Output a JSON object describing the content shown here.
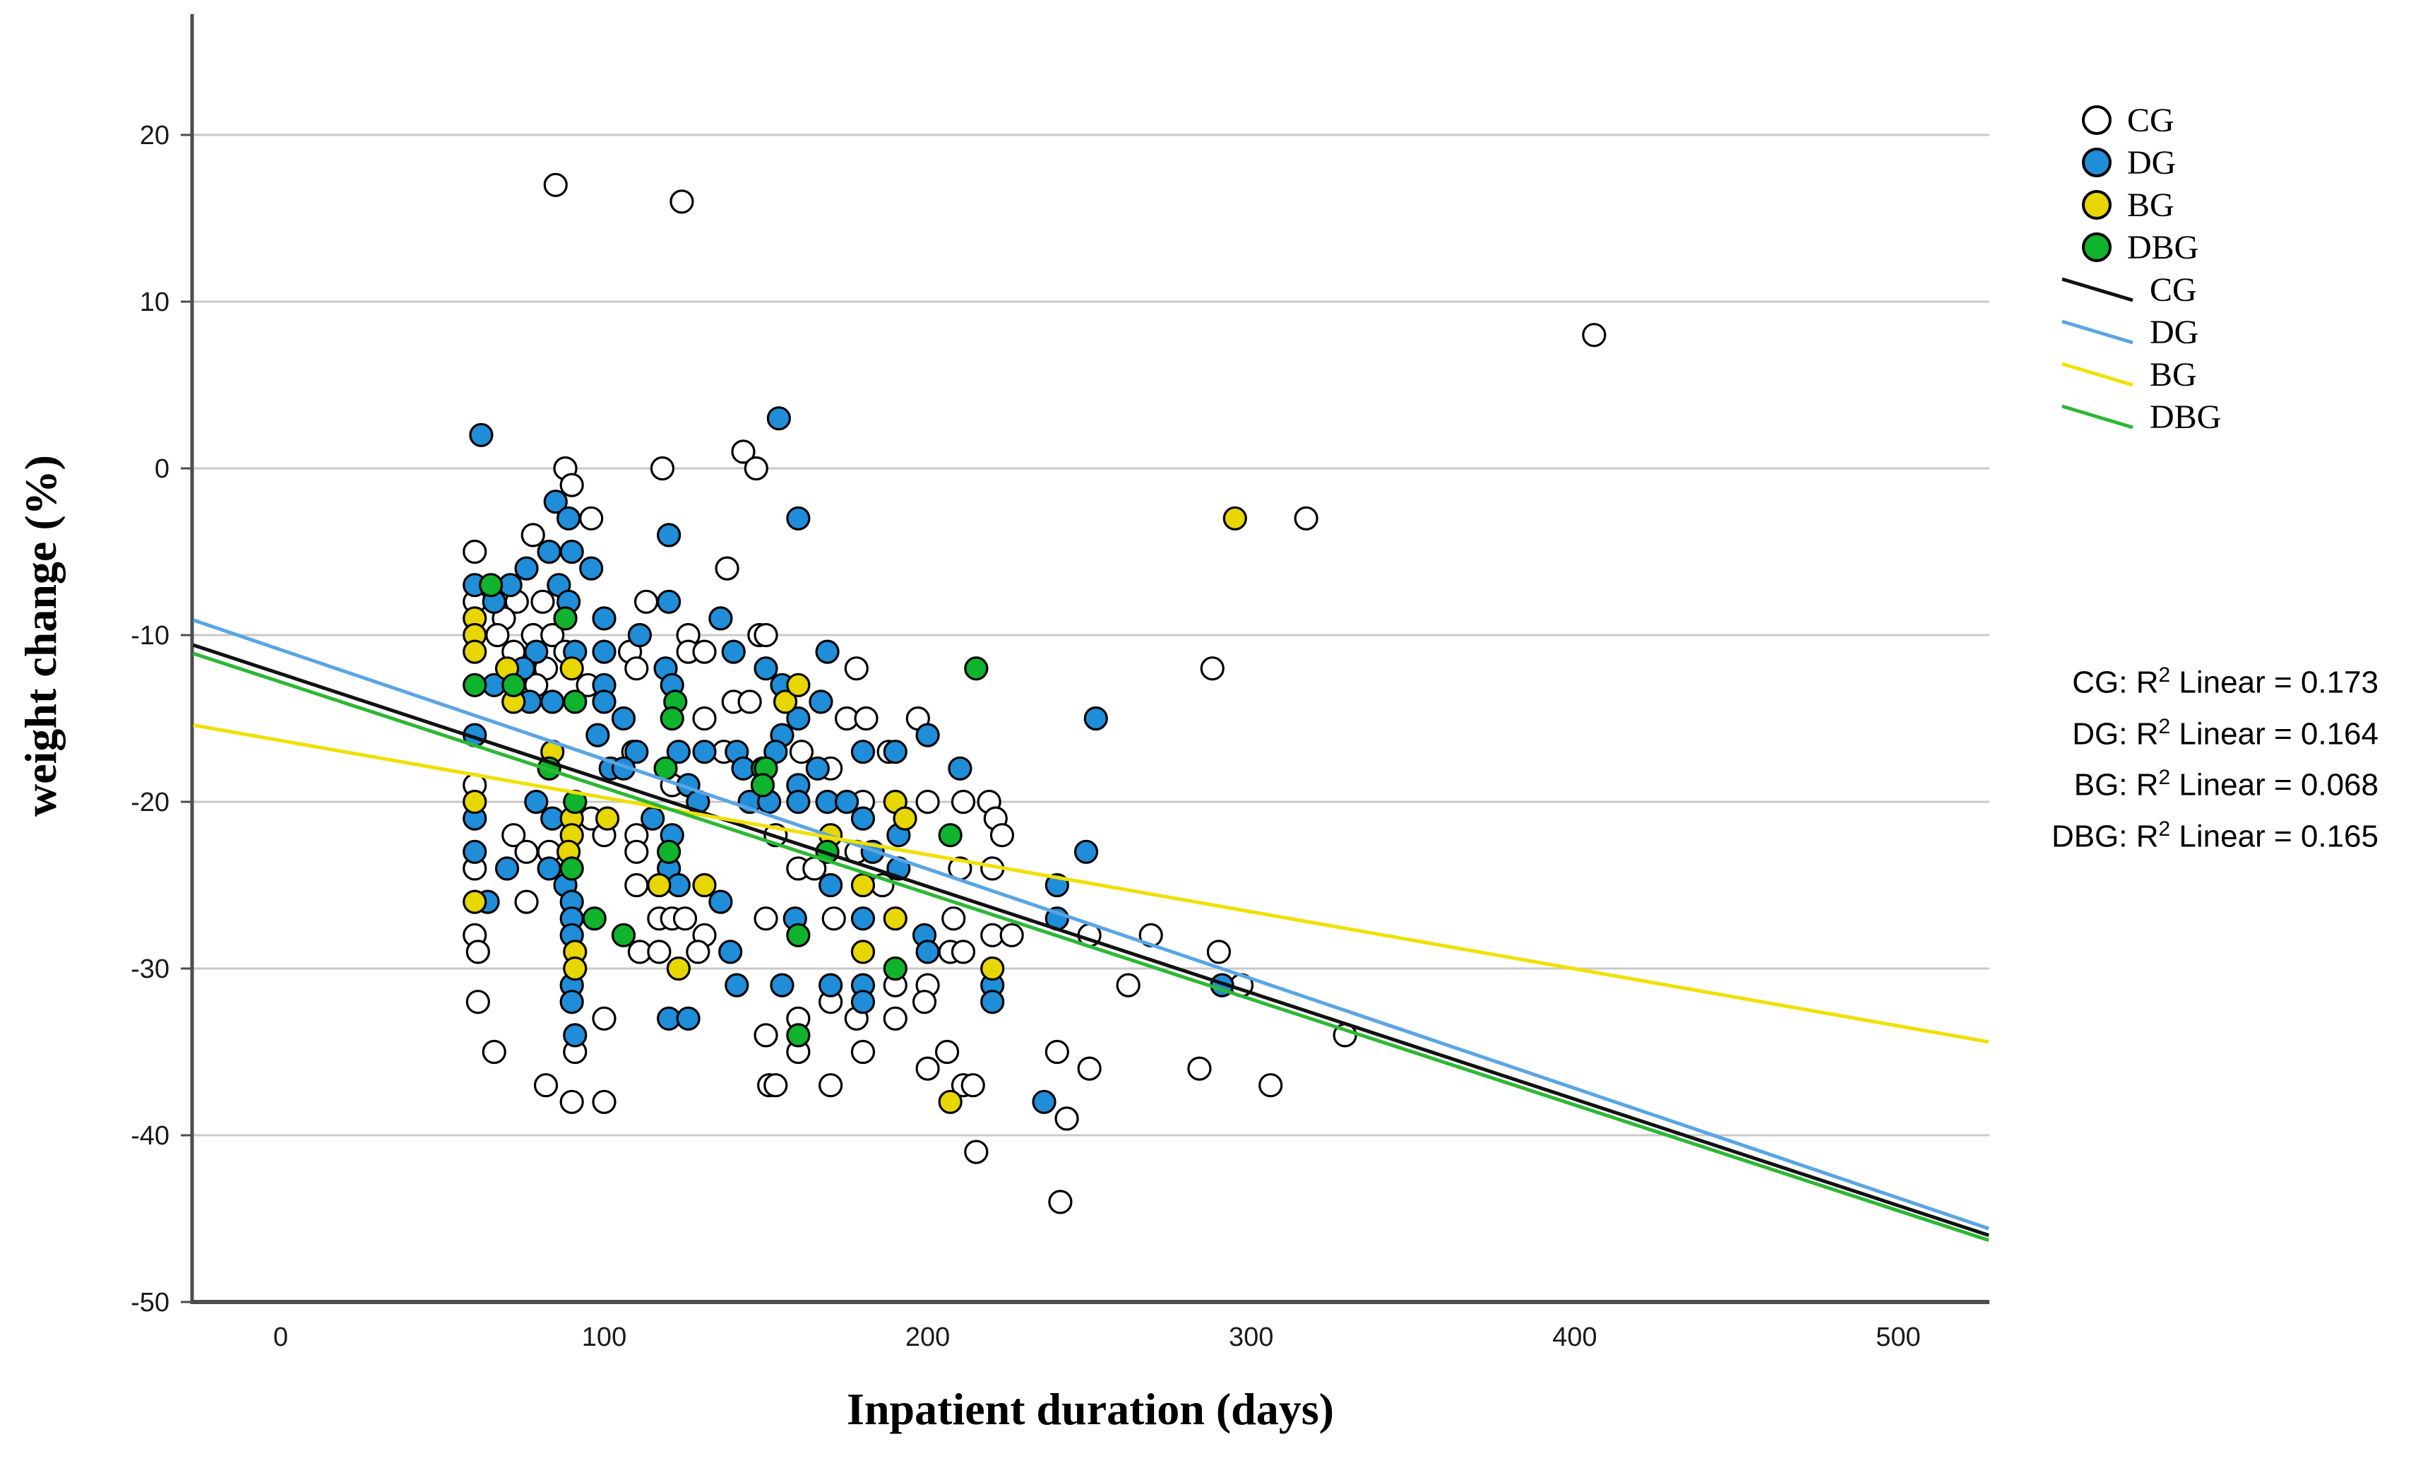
{
  "chart_data": {
    "type": "scatter",
    "title": "",
    "xlabel": "Inpatient duration (days)",
    "ylabel": "weight change (%)",
    "xlim": [
      -27,
      528
    ],
    "ylim": [
      -50,
      27
    ],
    "xticks": [
      0,
      100,
      200,
      300,
      400,
      500
    ],
    "yticks": [
      20,
      10,
      0,
      -10,
      -20,
      -30,
      -40,
      -50
    ],
    "grid": true,
    "legend_position": "right",
    "colors": {
      "cg_fill": "#ffffff",
      "dg_fill": "#1f8dd8",
      "bg_fill": "#e8d600",
      "dbg_fill": "#0fb32c",
      "cg_line": "#111111",
      "dg_line": "#5aa5e5",
      "bg_line": "#f0e000",
      "dbg_line": "#2cb834",
      "gridline": "#c9c9c9",
      "spine": "#4d4d4d"
    },
    "groups": [
      {
        "name": "CG",
        "fill": "#ffffff",
        "stroke": "#000000",
        "points": [
          [
            85,
            17
          ],
          [
            124,
            16
          ],
          [
            406,
            8
          ],
          [
            88,
            0
          ],
          [
            118,
            0
          ],
          [
            143,
            1
          ],
          [
            147,
            0
          ],
          [
            90,
            -1
          ],
          [
            96,
            -3
          ],
          [
            317,
            -3
          ],
          [
            78,
            -4
          ],
          [
            60,
            -5
          ],
          [
            138,
            -6
          ],
          [
            60,
            -8
          ],
          [
            73,
            -8
          ],
          [
            81,
            -8
          ],
          [
            113,
            -8
          ],
          [
            69,
            -9
          ],
          [
            67,
            -10
          ],
          [
            78,
            -10
          ],
          [
            84,
            -10
          ],
          [
            126,
            -10
          ],
          [
            148,
            -10
          ],
          [
            150,
            -10
          ],
          [
            72,
            -11
          ],
          [
            88,
            -11
          ],
          [
            108,
            -11
          ],
          [
            126,
            -11
          ],
          [
            131,
            -11
          ],
          [
            82,
            -12
          ],
          [
            110,
            -12
          ],
          [
            178,
            -12
          ],
          [
            288,
            -12
          ],
          [
            79,
            -13
          ],
          [
            95,
            -13
          ],
          [
            140,
            -14
          ],
          [
            145,
            -14
          ],
          [
            131,
            -15
          ],
          [
            175,
            -15
          ],
          [
            181,
            -15
          ],
          [
            197,
            -15
          ],
          [
            109,
            -17
          ],
          [
            137,
            -17
          ],
          [
            161,
            -17
          ],
          [
            188,
            -17
          ],
          [
            170,
            -18
          ],
          [
            60,
            -19
          ],
          [
            121,
            -19
          ],
          [
            180,
            -20
          ],
          [
            200,
            -20
          ],
          [
            211,
            -20
          ],
          [
            219,
            -20
          ],
          [
            96,
            -21
          ],
          [
            221,
            -21
          ],
          [
            72,
            -22
          ],
          [
            100,
            -22
          ],
          [
            110,
            -22
          ],
          [
            153,
            -22
          ],
          [
            223,
            -22
          ],
          [
            76,
            -23
          ],
          [
            83,
            -23
          ],
          [
            110,
            -23
          ],
          [
            178,
            -23
          ],
          [
            60,
            -24
          ],
          [
            160,
            -24
          ],
          [
            165,
            -24
          ],
          [
            210,
            -24
          ],
          [
            220,
            -24
          ],
          [
            110,
            -25
          ],
          [
            186,
            -25
          ],
          [
            76,
            -26
          ],
          [
            117,
            -27
          ],
          [
            121,
            -27
          ],
          [
            125,
            -27
          ],
          [
            150,
            -27
          ],
          [
            171,
            -27
          ],
          [
            208,
            -27
          ],
          [
            60,
            -28
          ],
          [
            131,
            -28
          ],
          [
            220,
            -28
          ],
          [
            226,
            -28
          ],
          [
            250,
            -28
          ],
          [
            269,
            -28
          ],
          [
            61,
            -29
          ],
          [
            111,
            -29
          ],
          [
            117,
            -29
          ],
          [
            129,
            -29
          ],
          [
            207,
            -29
          ],
          [
            211,
            -29
          ],
          [
            290,
            -29
          ],
          [
            190,
            -31
          ],
          [
            200,
            -31
          ],
          [
            262,
            -31
          ],
          [
            297,
            -31
          ],
          [
            61,
            -32
          ],
          [
            170,
            -32
          ],
          [
            199,
            -32
          ],
          [
            100,
            -33
          ],
          [
            160,
            -33
          ],
          [
            178,
            -33
          ],
          [
            190,
            -33
          ],
          [
            150,
            -34
          ],
          [
            329,
            -34
          ],
          [
            66,
            -35
          ],
          [
            91,
            -35
          ],
          [
            160,
            -35
          ],
          [
            180,
            -35
          ],
          [
            206,
            -35
          ],
          [
            240,
            -35
          ],
          [
            200,
            -36
          ],
          [
            250,
            -36
          ],
          [
            284,
            -36
          ],
          [
            82,
            -37
          ],
          [
            151,
            -37
          ],
          [
            153,
            -37
          ],
          [
            170,
            -37
          ],
          [
            211,
            -37
          ],
          [
            214,
            -37
          ],
          [
            306,
            -37
          ],
          [
            90,
            -38
          ],
          [
            100,
            -38
          ],
          [
            243,
            -39
          ],
          [
            215,
            -41
          ],
          [
            241,
            -44
          ]
        ]
      },
      {
        "name": "DG",
        "fill": "#1f8dd8",
        "stroke": "#000000",
        "points": [
          [
            62,
            2
          ],
          [
            154,
            3
          ],
          [
            160,
            -3
          ],
          [
            85,
            -2
          ],
          [
            89,
            -3
          ],
          [
            83,
            -5
          ],
          [
            90,
            -5
          ],
          [
            120,
            -4
          ],
          [
            76,
            -6
          ],
          [
            96,
            -6
          ],
          [
            60,
            -7
          ],
          [
            71,
            -7
          ],
          [
            86,
            -7
          ],
          [
            66,
            -8
          ],
          [
            89,
            -8
          ],
          [
            120,
            -8
          ],
          [
            100,
            -9
          ],
          [
            136,
            -9
          ],
          [
            111,
            -10
          ],
          [
            79,
            -11
          ],
          [
            91,
            -11
          ],
          [
            100,
            -11
          ],
          [
            140,
            -11
          ],
          [
            169,
            -11
          ],
          [
            75,
            -12
          ],
          [
            119,
            -12
          ],
          [
            150,
            -12
          ],
          [
            66,
            -13
          ],
          [
            100,
            -13
          ],
          [
            121,
            -13
          ],
          [
            155,
            -13
          ],
          [
            77,
            -14
          ],
          [
            84,
            -14
          ],
          [
            100,
            -14
          ],
          [
            167,
            -14
          ],
          [
            106,
            -15
          ],
          [
            160,
            -15
          ],
          [
            252,
            -15
          ],
          [
            60,
            -16
          ],
          [
            98,
            -16
          ],
          [
            155,
            -16
          ],
          [
            200,
            -16
          ],
          [
            110,
            -17
          ],
          [
            123,
            -17
          ],
          [
            131,
            -17
          ],
          [
            141,
            -17
          ],
          [
            153,
            -17
          ],
          [
            180,
            -17
          ],
          [
            190,
            -17
          ],
          [
            102,
            -18
          ],
          [
            106,
            -18
          ],
          [
            143,
            -18
          ],
          [
            166,
            -18
          ],
          [
            210,
            -18
          ],
          [
            126,
            -19
          ],
          [
            160,
            -19
          ],
          [
            79,
            -20
          ],
          [
            129,
            -20
          ],
          [
            145,
            -20
          ],
          [
            151,
            -20
          ],
          [
            160,
            -20
          ],
          [
            169,
            -20
          ],
          [
            175,
            -20
          ],
          [
            60,
            -21
          ],
          [
            84,
            -21
          ],
          [
            115,
            -21
          ],
          [
            180,
            -21
          ],
          [
            121,
            -22
          ],
          [
            191,
            -22
          ],
          [
            60,
            -23
          ],
          [
            183,
            -23
          ],
          [
            249,
            -23
          ],
          [
            70,
            -24
          ],
          [
            83,
            -24
          ],
          [
            120,
            -24
          ],
          [
            191,
            -24
          ],
          [
            88,
            -25
          ],
          [
            123,
            -25
          ],
          [
            170,
            -25
          ],
          [
            240,
            -25
          ],
          [
            64,
            -26
          ],
          [
            90,
            -26
          ],
          [
            136,
            -26
          ],
          [
            90,
            -27
          ],
          [
            159,
            -27
          ],
          [
            180,
            -27
          ],
          [
            240,
            -27
          ],
          [
            90,
            -28
          ],
          [
            199,
            -28
          ],
          [
            139,
            -29
          ],
          [
            200,
            -29
          ],
          [
            90,
            -31
          ],
          [
            141,
            -31
          ],
          [
            155,
            -31
          ],
          [
            170,
            -31
          ],
          [
            180,
            -31
          ],
          [
            220,
            -31
          ],
          [
            291,
            -31
          ],
          [
            90,
            -32
          ],
          [
            180,
            -32
          ],
          [
            220,
            -32
          ],
          [
            120,
            -33
          ],
          [
            126,
            -33
          ],
          [
            91,
            -34
          ],
          [
            236,
            -38
          ]
        ]
      },
      {
        "name": "BG",
        "fill": "#e8d600",
        "stroke": "#000000",
        "points": [
          [
            295,
            -3
          ],
          [
            60,
            -9
          ],
          [
            60,
            -10
          ],
          [
            60,
            -11
          ],
          [
            70,
            -12
          ],
          [
            90,
            -12
          ],
          [
            72,
            -14
          ],
          [
            156,
            -14
          ],
          [
            160,
            -13
          ],
          [
            84,
            -17
          ],
          [
            60,
            -20
          ],
          [
            190,
            -20
          ],
          [
            90,
            -21
          ],
          [
            101,
            -21
          ],
          [
            193,
            -21
          ],
          [
            90,
            -22
          ],
          [
            170,
            -22
          ],
          [
            89,
            -23
          ],
          [
            117,
            -25
          ],
          [
            131,
            -25
          ],
          [
            180,
            -25
          ],
          [
            60,
            -26
          ],
          [
            190,
            -27
          ],
          [
            91,
            -29
          ],
          [
            180,
            -29
          ],
          [
            91,
            -30
          ],
          [
            123,
            -30
          ],
          [
            220,
            -30
          ],
          [
            207,
            -38
          ]
        ]
      },
      {
        "name": "DBG",
        "fill": "#0fb32c",
        "stroke": "#000000",
        "points": [
          [
            65,
            -7
          ],
          [
            88,
            -9
          ],
          [
            215,
            -12
          ],
          [
            60,
            -13
          ],
          [
            72,
            -13
          ],
          [
            91,
            -14
          ],
          [
            122,
            -14
          ],
          [
            121,
            -15
          ],
          [
            83,
            -18
          ],
          [
            119,
            -18
          ],
          [
            149,
            -18
          ],
          [
            150,
            -18
          ],
          [
            149,
            -19
          ],
          [
            91,
            -20
          ],
          [
            207,
            -22
          ],
          [
            120,
            -23
          ],
          [
            169,
            -23
          ],
          [
            90,
            -24
          ],
          [
            97,
            -27
          ],
          [
            106,
            -28
          ],
          [
            160,
            -28
          ],
          [
            190,
            -30
          ],
          [
            160,
            -34
          ]
        ]
      }
    ],
    "fit_lines": [
      {
        "name": "CG",
        "color": "#111111",
        "x": [
          -27,
          528
        ],
        "y": [
          -10.6,
          -46.0
        ],
        "r2": 0.173
      },
      {
        "name": "DG",
        "color": "#5aa5e5",
        "x": [
          -27,
          528
        ],
        "y": [
          -9.1,
          -45.6
        ],
        "r2": 0.164
      },
      {
        "name": "BG",
        "color": "#f0e000",
        "x": [
          -27,
          528
        ],
        "y": [
          -15.4,
          -34.4
        ],
        "r2": 0.068
      },
      {
        "name": "DBG",
        "color": "#2cb834",
        "x": [
          -27,
          528
        ],
        "y": [
          -11.1,
          -46.3
        ],
        "r2": 0.165
      }
    ]
  },
  "legend": {
    "marker_items": [
      {
        "label": "CG",
        "fill": "#ffffff"
      },
      {
        "label": "DG",
        "fill": "#1f8dd8"
      },
      {
        "label": "BG",
        "fill": "#e8d600"
      },
      {
        "label": "DBG",
        "fill": "#0fb32c"
      }
    ],
    "line_items": [
      {
        "label": "CG",
        "color": "#111111"
      },
      {
        "label": "DG",
        "color": "#5aa5e5"
      },
      {
        "label": "BG",
        "color": "#f0e000"
      },
      {
        "label": "DBG",
        "color": "#2cb834"
      }
    ]
  },
  "annotations": {
    "r2_lines": [
      {
        "prefix": "CG: R",
        "sup": "2",
        "rest": " Linear = 0.173"
      },
      {
        "prefix": "DG: R",
        "sup": "2",
        "rest": " Linear = 0.164"
      },
      {
        "prefix": "BG: R",
        "sup": "2",
        "rest": " Linear = 0.068"
      },
      {
        "prefix": "DBG: R",
        "sup": "2",
        "rest": " Linear = 0.165"
      }
    ]
  }
}
